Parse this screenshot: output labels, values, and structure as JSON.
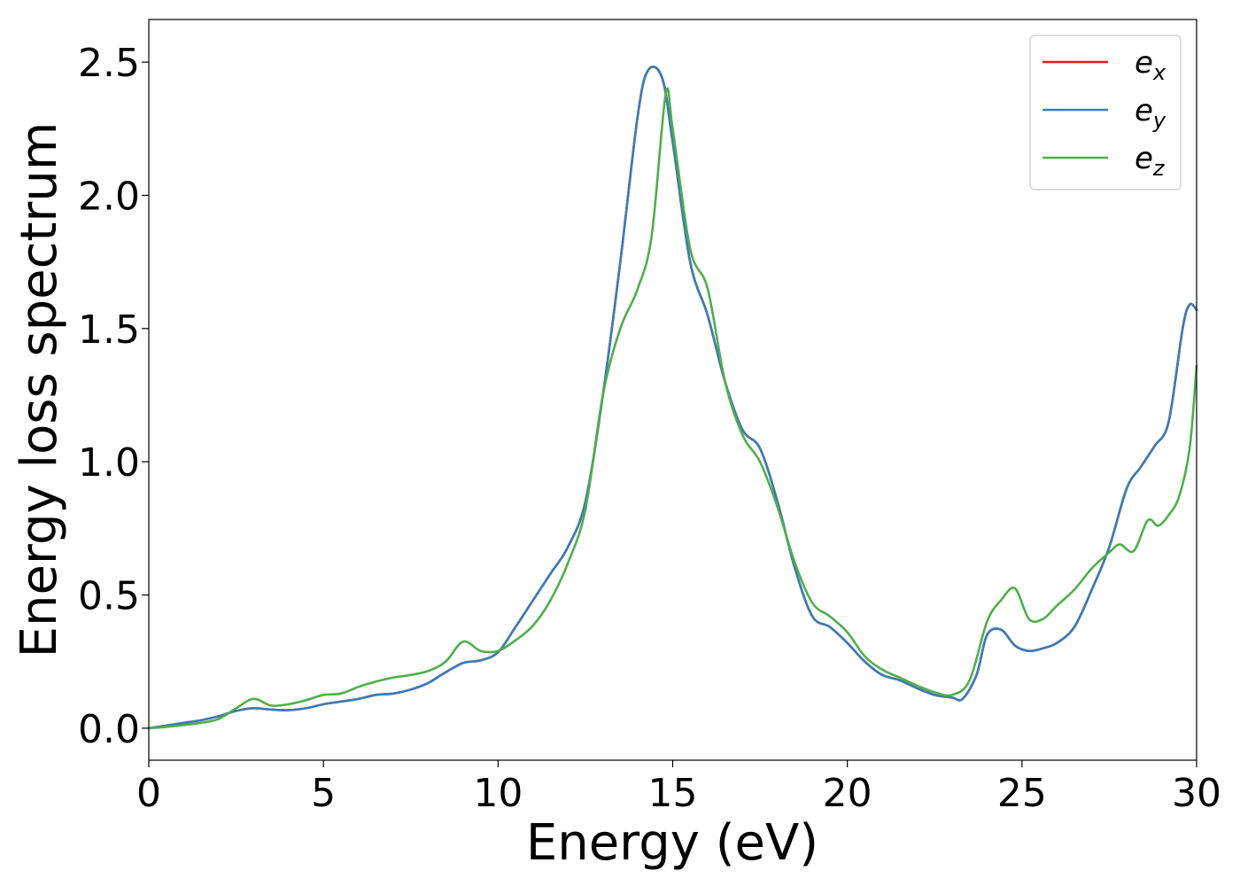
{
  "chart_data": {
    "type": "line",
    "title": "",
    "xlabel": "Energy (eV)",
    "ylabel": "Energy loss spectrum",
    "xlim": [
      0,
      30
    ],
    "ylim": [
      -0.12,
      2.66
    ],
    "xticks": [
      0,
      5,
      10,
      15,
      20,
      25,
      30
    ],
    "xtick_labels": [
      "0",
      "5",
      "10",
      "15",
      "20",
      "25",
      "30"
    ],
    "yticks": [
      0.0,
      0.5,
      1.0,
      1.5,
      2.0,
      2.5
    ],
    "ytick_labels": [
      "0.0",
      "0.5",
      "1.0",
      "1.5",
      "2.0",
      "2.5"
    ],
    "grid": false,
    "legend_position": "top-right",
    "series": [
      {
        "name": "e_x",
        "legend_base": "e",
        "legend_sub": "x",
        "color": "#e41a1c",
        "x": [
          0,
          0.5,
          1,
          1.5,
          2,
          2.5,
          3,
          3.5,
          4,
          4.5,
          5,
          5.5,
          6,
          6.5,
          7,
          7.5,
          8,
          8.5,
          9,
          9.5,
          10,
          10.5,
          11,
          11.5,
          12,
          12.5,
          13,
          13.5,
          14,
          14.3,
          14.7,
          15,
          15.5,
          16,
          16.5,
          17,
          17.5,
          18,
          18.5,
          19,
          19.5,
          20,
          20.5,
          21,
          21.5,
          22,
          22.5,
          23,
          23.3,
          23.7,
          24,
          24.4,
          24.8,
          25.2,
          25.6,
          26,
          26.5,
          27,
          27.5,
          28,
          28.4,
          28.8,
          29.2,
          29.6,
          29.8,
          30
        ],
        "y": [
          0.0,
          0.01,
          0.02,
          0.03,
          0.045,
          0.065,
          0.075,
          0.07,
          0.068,
          0.075,
          0.09,
          0.1,
          0.11,
          0.125,
          0.13,
          0.145,
          0.17,
          0.21,
          0.245,
          0.255,
          0.285,
          0.38,
          0.48,
          0.58,
          0.68,
          0.85,
          1.25,
          1.75,
          2.3,
          2.47,
          2.44,
          2.2,
          1.75,
          1.55,
          1.3,
          1.12,
          1.05,
          0.85,
          0.6,
          0.42,
          0.38,
          0.32,
          0.25,
          0.2,
          0.18,
          0.15,
          0.125,
          0.115,
          0.11,
          0.2,
          0.35,
          0.37,
          0.31,
          0.29,
          0.3,
          0.32,
          0.38,
          0.52,
          0.68,
          0.9,
          0.98,
          1.06,
          1.15,
          1.5,
          1.59,
          1.57
        ]
      },
      {
        "name": "e_y",
        "legend_base": "e",
        "legend_sub": "y",
        "color": "#377eb8",
        "x": [
          0,
          0.5,
          1,
          1.5,
          2,
          2.5,
          3,
          3.5,
          4,
          4.5,
          5,
          5.5,
          6,
          6.5,
          7,
          7.5,
          8,
          8.5,
          9,
          9.5,
          10,
          10.5,
          11,
          11.5,
          12,
          12.5,
          13,
          13.5,
          14,
          14.3,
          14.7,
          15,
          15.5,
          16,
          16.5,
          17,
          17.5,
          18,
          18.5,
          19,
          19.5,
          20,
          20.5,
          21,
          21.5,
          22,
          22.5,
          23,
          23.3,
          23.7,
          24,
          24.4,
          24.8,
          25.2,
          25.6,
          26,
          26.5,
          27,
          27.5,
          28,
          28.4,
          28.8,
          29.2,
          29.6,
          29.8,
          30
        ],
        "y": [
          0.0,
          0.01,
          0.02,
          0.03,
          0.045,
          0.065,
          0.075,
          0.07,
          0.068,
          0.075,
          0.09,
          0.1,
          0.11,
          0.125,
          0.13,
          0.145,
          0.17,
          0.21,
          0.245,
          0.255,
          0.285,
          0.38,
          0.48,
          0.58,
          0.68,
          0.85,
          1.25,
          1.75,
          2.3,
          2.47,
          2.44,
          2.2,
          1.75,
          1.55,
          1.3,
          1.12,
          1.05,
          0.85,
          0.6,
          0.42,
          0.38,
          0.32,
          0.25,
          0.2,
          0.18,
          0.15,
          0.125,
          0.115,
          0.11,
          0.2,
          0.35,
          0.37,
          0.31,
          0.29,
          0.3,
          0.32,
          0.38,
          0.52,
          0.68,
          0.9,
          0.98,
          1.06,
          1.15,
          1.5,
          1.59,
          1.57
        ]
      },
      {
        "name": "e_z",
        "legend_base": "e",
        "legend_sub": "z",
        "color": "#4daf4a",
        "x": [
          0,
          0.5,
          1,
          1.5,
          2,
          2.5,
          3,
          3.5,
          4,
          4.5,
          5,
          5.5,
          6,
          6.5,
          7,
          7.5,
          8,
          8.5,
          9,
          9.5,
          10,
          10.5,
          11,
          11.5,
          12,
          12.5,
          13,
          13.5,
          14,
          14.4,
          14.8,
          15,
          15.5,
          16,
          16.5,
          17,
          17.5,
          18,
          18.5,
          19,
          19.5,
          20,
          20.5,
          21,
          21.5,
          22,
          22.5,
          23,
          23.5,
          24,
          24.4,
          24.8,
          25.2,
          25.6,
          26,
          26.5,
          27,
          27.5,
          27.8,
          28.2,
          28.6,
          28.9,
          29.2,
          29.5,
          29.8,
          30
        ],
        "y": [
          0.0,
          0.005,
          0.012,
          0.02,
          0.035,
          0.075,
          0.11,
          0.085,
          0.09,
          0.105,
          0.125,
          0.13,
          0.155,
          0.175,
          0.19,
          0.2,
          0.215,
          0.25,
          0.325,
          0.29,
          0.29,
          0.33,
          0.385,
          0.48,
          0.62,
          0.82,
          1.25,
          1.5,
          1.65,
          1.85,
          2.38,
          2.25,
          1.8,
          1.65,
          1.3,
          1.1,
          1.0,
          0.83,
          0.62,
          0.47,
          0.42,
          0.36,
          0.27,
          0.22,
          0.19,
          0.16,
          0.135,
          0.125,
          0.18,
          0.4,
          0.48,
          0.525,
          0.41,
          0.41,
          0.46,
          0.52,
          0.6,
          0.66,
          0.69,
          0.665,
          0.78,
          0.76,
          0.8,
          0.87,
          1.05,
          1.36
        ]
      }
    ]
  }
}
